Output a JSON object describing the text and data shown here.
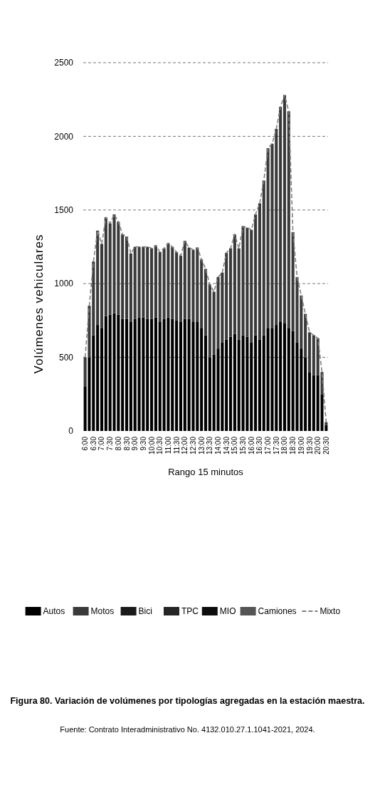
{
  "chart_data": {
    "type": "bar",
    "stacked": true,
    "title": "Figura 80. Variación de volúmenes por tipologías agregadas en la estación maestra.",
    "annotations": [
      "Fuente: Contrato Interadministrativo No. 4132.010.27.1.1041-2021, 2024."
    ],
    "xlabel": "Rango 15 minutos",
    "ylabel": "Volúmenes vehiculares",
    "ylim": [
      0,
      2500
    ],
    "yticks": [
      0,
      500,
      1000,
      1500,
      2000,
      2500
    ],
    "grid": "y",
    "legend": "bottom",
    "categories": [
      "6:00",
      null,
      "6:30",
      null,
      "7:00",
      null,
      "7:30",
      null,
      "8:00",
      null,
      "8:30",
      null,
      "9:00",
      null,
      "9:30",
      null,
      "10:00",
      null,
      "10:30",
      null,
      "11:00",
      null,
      "11:30",
      null,
      "12:00",
      null,
      "12:30",
      null,
      "13:00",
      null,
      "13:30",
      null,
      "14:00",
      null,
      "14:30",
      null,
      "15:00",
      null,
      "15:30",
      null,
      "16:00",
      null,
      "16:30",
      null,
      "17:00",
      null,
      "17:30",
      null,
      "18:00",
      null,
      "18:30",
      null,
      "19:00",
      null,
      "19:30",
      null,
      "20:00",
      null,
      "20:30"
    ],
    "series": [
      {
        "name": "Autos",
        "color": "#000000",
        "values": [
          300,
          500,
          650,
          720,
          700,
          780,
          790,
          800,
          790,
          760,
          760,
          740,
          760,
          770,
          770,
          760,
          760,
          770,
          740,
          760,
          770,
          760,
          750,
          740,
          760,
          760,
          740,
          740,
          700,
          650,
          500,
          520,
          560,
          600,
          620,
          640,
          660,
          620,
          650,
          640,
          600,
          650,
          620,
          650,
          700,
          700,
          720,
          740,
          730,
          700,
          680,
          600,
          560,
          500,
          400,
          380,
          380,
          250,
          40
        ]
      },
      {
        "name": "Motos",
        "color": "#3a3a3a",
        "values": [
          200,
          350,
          500,
          640,
          570,
          670,
          620,
          670,
          630,
          575,
          560,
          465,
          490,
          480,
          480,
          490,
          480,
          490,
          475,
          480,
          505,
          490,
          465,
          450,
          530,
          485,
          490,
          505,
          465,
          450,
          495,
          425,
          485,
          475,
          590,
          600,
          675,
          620,
          740,
          740,
          765,
          820,
          925,
          1050,
          1220,
          1250,
          1330,
          1460,
          1550,
          1470,
          670,
          445,
          360,
          295,
          270,
          270,
          250,
          150,
          20
        ]
      },
      {
        "name": "Bici",
        "color": "#1a1a1a",
        "values": [
          null,
          null,
          null,
          null,
          null,
          null,
          null,
          null,
          null,
          null,
          null,
          null,
          null,
          null,
          null,
          null,
          null,
          null,
          null,
          null,
          null,
          null,
          null,
          null,
          null,
          null,
          null,
          null,
          null,
          null,
          null,
          null,
          null,
          null,
          null,
          null,
          null,
          null,
          null,
          null,
          null,
          null,
          null,
          null,
          null,
          null,
          null,
          null,
          null,
          null,
          null,
          null,
          null,
          null,
          null,
          null,
          null,
          null,
          null
        ]
      },
      {
        "name": "TPC",
        "color": "#262626",
        "values": [
          null,
          null,
          null,
          null,
          null,
          null,
          null,
          null,
          null,
          null,
          null,
          null,
          null,
          null,
          null,
          null,
          null,
          null,
          null,
          null,
          null,
          null,
          null,
          null,
          null,
          null,
          null,
          null,
          null,
          null,
          null,
          null,
          null,
          null,
          null,
          null,
          null,
          null,
          null,
          null,
          null,
          null,
          null,
          null,
          null,
          null,
          null,
          null,
          null,
          null,
          null,
          null,
          null,
          null,
          null,
          null,
          null,
          null,
          null
        ]
      },
      {
        "name": "MIO",
        "color": "#0d0d0d",
        "values": [
          null,
          null,
          null,
          null,
          null,
          null,
          null,
          null,
          null,
          null,
          null,
          null,
          null,
          null,
          null,
          null,
          null,
          null,
          null,
          null,
          null,
          null,
          null,
          null,
          null,
          null,
          null,
          null,
          null,
          null,
          null,
          null,
          null,
          null,
          null,
          null,
          null,
          null,
          null,
          null,
          null,
          null,
          null,
          null,
          null,
          null,
          null,
          null,
          null,
          null,
          null,
          null,
          null,
          null,
          null,
          null,
          null,
          null,
          null
        ]
      },
      {
        "name": "Camiones",
        "color": "#555555",
        "values": [
          null,
          null,
          null,
          null,
          null,
          null,
          null,
          null,
          null,
          null,
          null,
          null,
          null,
          null,
          null,
          null,
          null,
          null,
          null,
          null,
          null,
          null,
          null,
          null,
          null,
          null,
          null,
          null,
          null,
          null,
          null,
          null,
          null,
          null,
          null,
          null,
          null,
          null,
          null,
          null,
          null,
          null,
          null,
          null,
          null,
          null,
          null,
          null,
          null,
          null,
          null,
          null,
          null,
          null,
          null,
          null,
          null,
          null,
          null
        ]
      },
      {
        "name": "Mixto",
        "type": "line",
        "line_style": "dashed",
        "color": "#808080",
        "values": [
          500,
          850,
          1150,
          1360,
          1270,
          1450,
          1410,
          1470,
          1420,
          1335,
          1320,
          1205,
          1250,
          1250,
          1250,
          1250,
          1240,
          1260,
          1215,
          1240,
          1275,
          1250,
          1215,
          1190,
          1290,
          1245,
          1230,
          1245,
          1165,
          1100,
          995,
          945,
          1045,
          1075,
          1210,
          1240,
          1335,
          1240,
          1390,
          1380,
          1365,
          1470,
          1545,
          1700,
          1920,
          1950,
          2050,
          2200,
          2280,
          2170,
          1350,
          1045,
          920,
          795,
          670,
          650,
          630,
          400,
          60
        ]
      }
    ]
  }
}
